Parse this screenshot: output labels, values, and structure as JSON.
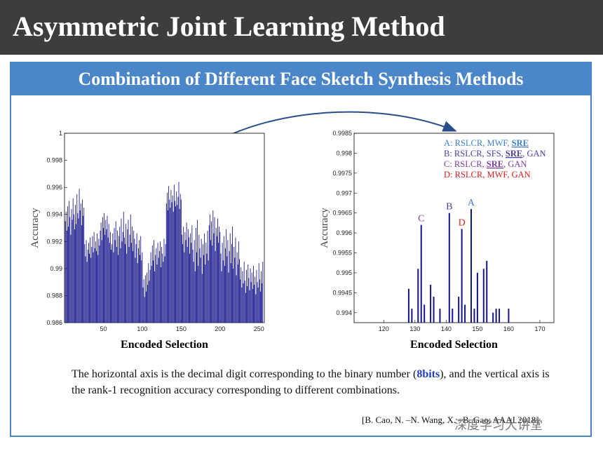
{
  "header": {
    "title": "Asymmetric Joint Learning Method"
  },
  "panel": {
    "title": "Combination of Different Face Sketch Synthesis Methods"
  },
  "caption": [
    "The horizontal axis is the decimal digit corresponding to the binary number (",
    "8bits",
    "), and the vertical axis is the rank-1 recognition accuracy corresponding to different combinations."
  ],
  "citation": "[B. Cao, N. –N. Wang, X. –B. Gao, AAAI 2018]",
  "watermark": "深度学习大讲堂",
  "chart_data": [
    {
      "type": "bar",
      "xlabel": "Encoded Selection",
      "ylabel": "Accuracy",
      "color": "#14148c",
      "xlim": [
        0,
        257
      ],
      "xticks": [
        50,
        100,
        150,
        200,
        250
      ],
      "ylim": [
        0.986,
        1
      ],
      "yticks": [
        0.986,
        0.988,
        0.99,
        0.992,
        0.994,
        0.996,
        0.998,
        1
      ],
      "x": [
        1,
        2,
        3,
        4,
        5,
        6,
        7,
        8,
        9,
        10,
        11,
        12,
        13,
        14,
        15,
        16,
        17,
        18,
        19,
        20,
        21,
        22,
        23,
        24,
        25,
        26,
        27,
        28,
        29,
        30,
        31,
        32,
        33,
        34,
        35,
        36,
        37,
        38,
        39,
        40,
        41,
        42,
        43,
        44,
        45,
        46,
        47,
        48,
        49,
        50,
        51,
        52,
        53,
        54,
        55,
        56,
        57,
        58,
        59,
        60,
        61,
        62,
        63,
        64,
        65,
        66,
        67,
        68,
        69,
        70,
        71,
        72,
        73,
        74,
        75,
        76,
        77,
        78,
        79,
        80,
        81,
        82,
        83,
        84,
        85,
        86,
        87,
        88,
        89,
        90,
        91,
        92,
        93,
        94,
        95,
        96,
        97,
        98,
        99,
        100,
        101,
        102,
        103,
        104,
        105,
        106,
        107,
        108,
        109,
        110,
        111,
        112,
        113,
        114,
        115,
        116,
        117,
        118,
        119,
        120,
        121,
        122,
        123,
        124,
        125,
        126,
        127,
        128,
        129,
        130,
        131,
        132,
        133,
        134,
        135,
        136,
        137,
        138,
        139,
        140,
        141,
        142,
        143,
        144,
        145,
        146,
        147,
        148,
        149,
        150,
        151,
        152,
        153,
        154,
        155,
        156,
        157,
        158,
        159,
        160,
        161,
        162,
        163,
        164,
        165,
        166,
        167,
        168,
        169,
        170,
        171,
        172,
        173,
        174,
        175,
        176,
        177,
        178,
        179,
        180,
        181,
        182,
        183,
        184,
        185,
        186,
        187,
        188,
        189,
        190,
        191,
        192,
        193,
        194,
        195,
        196,
        197,
        198,
        199,
        200,
        201,
        202,
        203,
        204,
        205,
        206,
        207,
        208,
        209,
        210,
        211,
        212,
        213,
        214,
        215,
        216,
        217,
        218,
        219,
        220,
        221,
        222,
        223,
        224,
        225,
        226,
        227,
        228,
        229,
        230,
        231,
        232,
        233,
        234,
        235,
        236,
        237,
        238,
        239,
        240,
        241,
        242,
        243,
        244,
        245,
        246,
        247,
        248,
        249,
        250,
        251,
        252,
        253,
        254,
        255
      ],
      "values": [
        0.9935,
        0.9942,
        0.9928,
        0.9946,
        0.9931,
        0.995,
        0.9938,
        0.9925,
        0.9944,
        0.9936,
        0.9952,
        0.994,
        0.9929,
        0.9947,
        0.9933,
        0.9955,
        0.9941,
        0.9937,
        0.9959,
        0.9943,
        0.9948,
        0.9932,
        0.9951,
        0.9939,
        0.9945,
        0.9918,
        0.9909,
        0.9921,
        0.9905,
        0.9914,
        0.9919,
        0.9911,
        0.9923,
        0.9908,
        0.9916,
        0.9924,
        0.9912,
        0.9927,
        0.9915,
        0.992,
        0.9913,
        0.9926,
        0.991,
        0.9922,
        0.9917,
        0.9928,
        0.9934,
        0.9921,
        0.9938,
        0.993,
        0.9941,
        0.9925,
        0.9936,
        0.9929,
        0.9939,
        0.9923,
        0.9933,
        0.9919,
        0.9927,
        0.9914,
        0.9918,
        0.9926,
        0.9912,
        0.993,
        0.9921,
        0.9935,
        0.9916,
        0.9928,
        0.991,
        0.9924,
        0.9931,
        0.9915,
        0.9937,
        0.992,
        0.9927,
        0.9942,
        0.9923,
        0.9918,
        0.9933,
        0.9911,
        0.9929,
        0.9936,
        0.9916,
        0.9925,
        0.994,
        0.9919,
        0.9931,
        0.9913,
        0.9928,
        0.9922,
        0.9908,
        0.9918,
        0.9926,
        0.9904,
        0.9915,
        0.9921,
        0.991,
        0.9924,
        0.9906,
        0.9912,
        0.9886,
        0.9892,
        0.9879,
        0.9895,
        0.9883,
        0.9897,
        0.9888,
        0.9904,
        0.9891,
        0.9899,
        0.9912,
        0.9902,
        0.9917,
        0.9906,
        0.9921,
        0.9898,
        0.991,
        0.9915,
        0.9903,
        0.9919,
        0.9908,
        0.9913,
        0.992,
        0.9901,
        0.9916,
        0.9911,
        0.9905,
        0.9922,
        0.9909,
        0.9918,
        0.9948,
        0.9956,
        0.9943,
        0.9961,
        0.9951,
        0.9945,
        0.9958,
        0.9949,
        0.9954,
        0.9942,
        0.9962,
        0.995,
        0.9946,
        0.9957,
        0.9947,
        0.9953,
        0.9964,
        0.9944,
        0.9955,
        0.9951,
        0.9925,
        0.9918,
        0.9931,
        0.9912,
        0.9927,
        0.9921,
        0.9934,
        0.9916,
        0.9929,
        0.9923,
        0.9911,
        0.9926,
        0.9919,
        0.9932,
        0.9914,
        0.9905,
        0.9921,
        0.9898,
        0.993,
        0.9912,
        0.9936,
        0.9902,
        0.9925,
        0.9915,
        0.9908,
        0.9922,
        0.9896,
        0.9918,
        0.991,
        0.9926,
        0.9903,
        0.9919,
        0.9911,
        0.9928,
        0.9906,
        0.9932,
        0.994,
        0.9921,
        0.9935,
        0.9917,
        0.9943,
        0.9926,
        0.9938,
        0.9913,
        0.993,
        0.9924,
        0.9937,
        0.9919,
        0.9931,
        0.9927,
        0.9911,
        0.9898,
        0.9919,
        0.9906,
        0.9924,
        0.9902,
        0.9915,
        0.9929,
        0.9909,
        0.9921,
        0.9897,
        0.9913,
        0.9926,
        0.9904,
        0.9918,
        0.9931,
        0.99,
        0.9916,
        0.9908,
        0.9923,
        0.9895,
        0.9912,
        0.9903,
        0.992,
        0.9907,
        0.9892,
        0.9901,
        0.9886,
        0.9898,
        0.9889,
        0.9905,
        0.9891,
        0.9882,
        0.9899,
        0.9887,
        0.9903,
        0.9893,
        0.9884,
        0.99,
        0.989,
        0.9897,
        0.9885,
        0.9902,
        0.9888,
        0.9894,
        0.9881,
        0.9899,
        0.989,
        0.9886,
        0.9904,
        0.9892,
        0.9883,
        0.9898,
        0.9889,
        0.9905
      ]
    },
    {
      "type": "bar",
      "xlabel": "Encoded Selection",
      "ylabel": "Accuracy",
      "color": "#14148c",
      "xlim": [
        110.5,
        174.5
      ],
      "xticks": [
        120,
        130,
        140,
        150,
        160,
        170
      ],
      "ylim": [
        0.99375,
        0.9985
      ],
      "yticks": [
        0.994,
        0.9945,
        0.995,
        0.9955,
        0.996,
        0.9965,
        0.997,
        0.9975,
        0.998,
        0.9985
      ],
      "x": [
        128,
        129,
        131,
        132,
        133,
        135,
        136,
        138,
        141,
        142,
        144,
        145,
        146,
        148,
        149,
        150,
        152,
        153,
        155,
        156,
        157,
        160
      ],
      "values": [
        0.9946,
        0.9941,
        0.9951,
        0.9962,
        0.9942,
        0.9947,
        0.9944,
        0.9941,
        0.9965,
        0.9941,
        0.9944,
        0.9961,
        0.9942,
        0.9966,
        0.9941,
        0.995,
        0.9951,
        0.9953,
        0.994,
        0.9941,
        0.9941,
        0.9941
      ],
      "value_labels": [
        null,
        null,
        null,
        "C",
        null,
        null,
        null,
        null,
        "B",
        null,
        null,
        "D",
        null,
        "A",
        null,
        null,
        null,
        null,
        null,
        null,
        null,
        null
      ],
      "value_label_colors": [
        null,
        null,
        null,
        "#7a3ea0",
        null,
        null,
        null,
        null,
        "#4a3f9a",
        null,
        null,
        "#d62020",
        null,
        "#3f7fc4",
        null,
        null,
        null,
        null,
        null,
        null,
        null,
        null
      ],
      "legend": [
        {
          "parts": [
            "A: RSLCR, MWF, ",
            "SRE"
          ],
          "color": "#3f7fc4"
        },
        {
          "parts": [
            "B: RSLCR, SFS, ",
            "SRE",
            ", GAN"
          ],
          "color": "#4a3f9a"
        },
        {
          "parts": [
            "C: RSLCR, ",
            "SRE",
            ", GAN"
          ],
          "color": "#7a3ea0"
        },
        {
          "parts": [
            "D: RSLCR, MWF, GAN"
          ],
          "color": "#d62020"
        }
      ]
    }
  ]
}
